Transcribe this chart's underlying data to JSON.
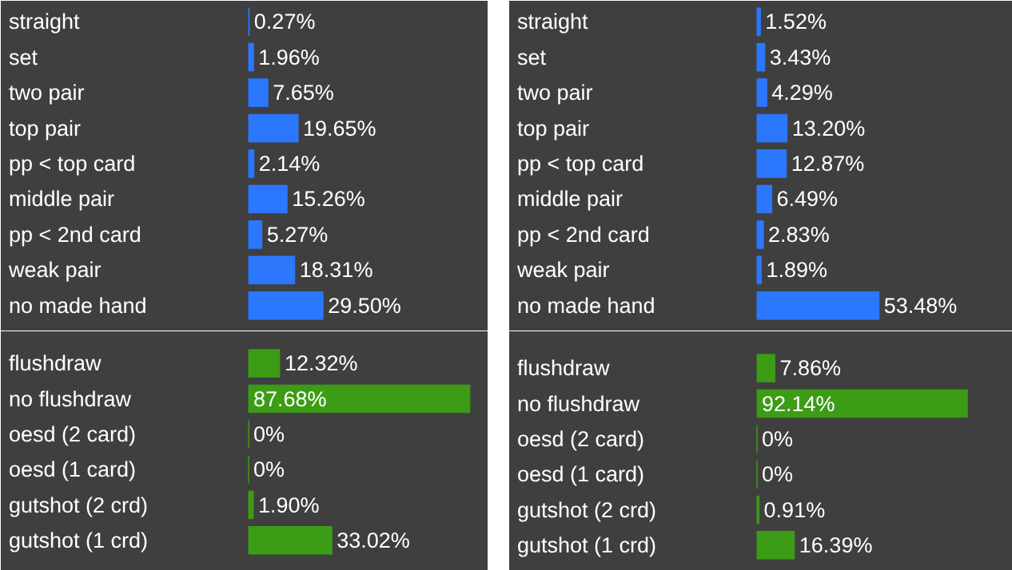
{
  "chart_data": [
    {
      "type": "bar",
      "orientation": "horizontal",
      "categories": [
        "straight",
        "set",
        "two pair",
        "top pair",
        "pp < top card",
        "middle pair",
        "pp < 2nd card",
        "weak pair",
        "no made hand"
      ],
      "values": [
        0.27,
        1.96,
        7.65,
        19.65,
        2.14,
        15.26,
        5.27,
        18.31,
        29.5
      ],
      "value_labels": [
        "0.27%",
        "1.96%",
        "7.65%",
        "19.65%",
        "2.14%",
        "15.26%",
        "5.27%",
        "18.31%",
        "29.50%"
      ],
      "color": "#2b78ff",
      "xlim": [
        0,
        95
      ],
      "tick_labels": "y"
    },
    {
      "type": "bar",
      "orientation": "horizontal",
      "categories": [
        "flushdraw",
        "no flushdraw",
        "oesd (2 card)",
        "oesd (1 card)",
        "gutshot (2 crd)",
        "gutshot (1 crd)"
      ],
      "values": [
        12.32,
        87.68,
        0,
        0,
        1.9,
        33.02
      ],
      "value_labels": [
        "12.32%",
        "87.68%",
        "0%",
        "0%",
        "1.90%",
        "33.02%"
      ],
      "color": "#3c9c16",
      "xlim": [
        0,
        95
      ],
      "tick_labels": "y"
    },
    {
      "type": "bar",
      "orientation": "horizontal",
      "categories": [
        "straight",
        "set",
        "two pair",
        "top pair",
        "pp < top card",
        "middle pair",
        "pp < 2nd card",
        "weak pair",
        "no made hand"
      ],
      "values": [
        1.52,
        3.43,
        4.29,
        13.2,
        12.87,
        6.49,
        2.83,
        1.89,
        53.48
      ],
      "value_labels": [
        "1.52%",
        "3.43%",
        "4.29%",
        "13.20%",
        "12.87%",
        "6.49%",
        "2.83%",
        "1.89%",
        "53.48%"
      ],
      "color": "#2b78ff",
      "xlim": [
        0,
        112
      ],
      "tick_labels": "y"
    },
    {
      "type": "bar",
      "orientation": "horizontal",
      "categories": [
        "flushdraw",
        "no flushdraw",
        "oesd (2 card)",
        "oesd (1 card)",
        "gutshot (2 crd)",
        "gutshot (1 crd)"
      ],
      "values": [
        7.86,
        92.14,
        0,
        0,
        0.91,
        16.39
      ],
      "value_labels": [
        "7.86%",
        "92.14%",
        "0%",
        "0%",
        "0.91%",
        "16.39%"
      ],
      "color": "#3c9c16",
      "xlim": [
        0,
        112
      ],
      "tick_labels": "y"
    }
  ]
}
